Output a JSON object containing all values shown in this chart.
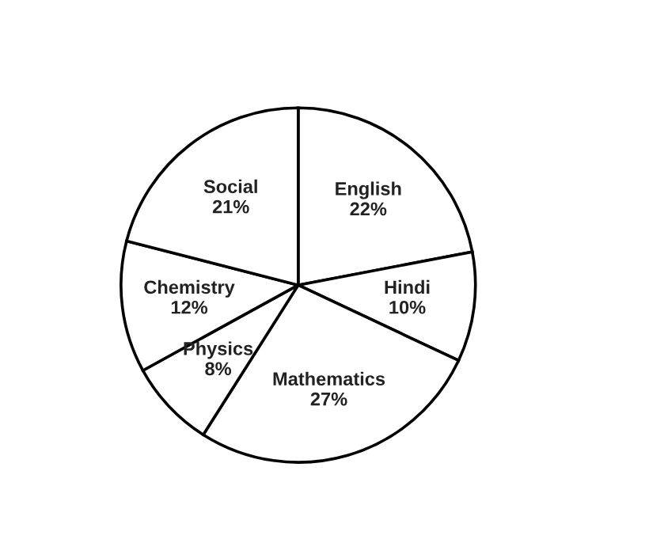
{
  "chart_data": {
    "type": "pie",
    "categories": [
      "English",
      "Hindi",
      "Mathematics",
      "Physics",
      "Chemistry",
      "Social"
    ],
    "values": [
      22,
      10,
      27,
      8,
      12,
      21
    ],
    "value_labels": [
      "22%",
      "10%",
      "27%",
      "8%",
      "12%",
      "21%"
    ],
    "colors": [
      "#ffffff",
      "#ffffff",
      "#ffffff",
      "#ffffff",
      "#ffffff",
      "#ffffff"
    ],
    "legend": false
  }
}
